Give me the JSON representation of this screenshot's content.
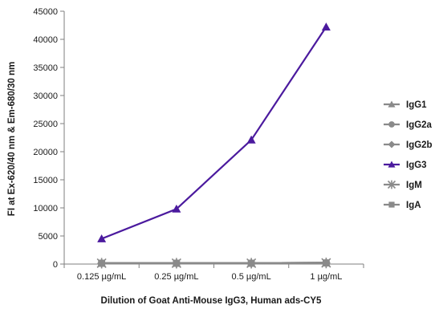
{
  "chart_data": {
    "type": "line",
    "xlabel": "Dilution of Goat Anti-Mouse IgG3, Human ads-CY5",
    "ylabel": "FI at Ex-620/40 nm & Em-680/30 nm",
    "categories": [
      "0.125 µg/mL",
      "0.25 µg/mL",
      "0.5 µg/mL",
      "1 µg/mL"
    ],
    "ylim": [
      0,
      45000
    ],
    "yticks": [
      0,
      5000,
      10000,
      15000,
      20000,
      25000,
      30000,
      35000,
      40000,
      45000
    ],
    "grid": false,
    "legend_position": "right",
    "series": [
      {
        "name": "IgG1",
        "values": [
          150,
          150,
          150,
          200
        ],
        "color": "#8a8a8a",
        "marker": "triangle"
      },
      {
        "name": "IgG2a",
        "values": [
          150,
          150,
          150,
          200
        ],
        "color": "#8a8a8a",
        "marker": "circle"
      },
      {
        "name": "IgG2b",
        "values": [
          150,
          150,
          150,
          200
        ],
        "color": "#8a8a8a",
        "marker": "diamond"
      },
      {
        "name": "IgG3",
        "values": [
          4500,
          9800,
          22100,
          42200
        ],
        "color": "#4b1a9e",
        "marker": "triangle"
      },
      {
        "name": "IgM",
        "values": [
          150,
          150,
          150,
          200
        ],
        "color": "#8a8a8a",
        "marker": "star"
      },
      {
        "name": "IgA",
        "values": [
          150,
          150,
          150,
          200
        ],
        "color": "#8a8a8a",
        "marker": "square"
      }
    ]
  }
}
